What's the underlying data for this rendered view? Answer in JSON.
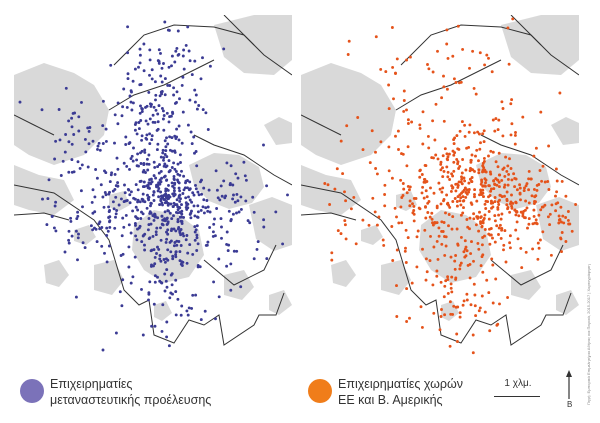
{
  "colors": {
    "background": "#ffffff",
    "land_gray": "#d9d9d9",
    "boundary": "#333333",
    "migrant_dots": "#3b3b94",
    "eu_dots": "#e5531b"
  },
  "legend": {
    "left_label_line1": "Επιχειρηματίες",
    "left_label_line2": "μεταναστευτικής προέλευσης",
    "left_color": "#7b72b9",
    "right_label_line1": "Επιχειρηματίες χωρών",
    "right_label_line2": "ΕΕ και Β. Αμερικής",
    "right_color": "#f07d1a"
  },
  "scale": {
    "label": "1 χλμ."
  },
  "north": {
    "label": "Β",
    "icon": "north-arrow-icon"
  },
  "credit": "Πηγή: Εμπορικά Επιμελητήρια Αθήνας και Πειραιά, 2015-2017 | Χαρτογράφηση"
}
